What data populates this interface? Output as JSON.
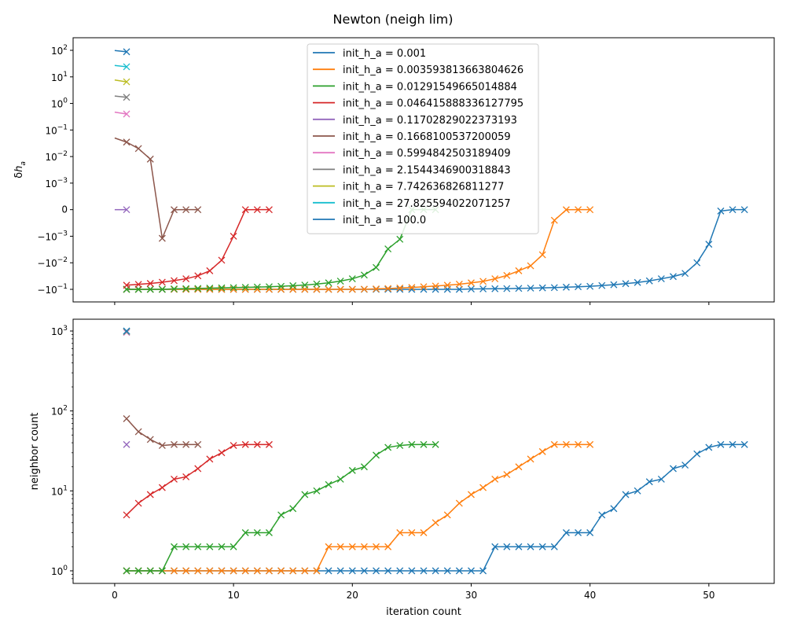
{
  "figure": {
    "title": "Newton (neigh lim)"
  },
  "colors": [
    "#1f77b4",
    "#ff7f0e",
    "#2ca02c",
    "#d62728",
    "#9467bd",
    "#8c564b",
    "#e377c2",
    "#7f7f7f",
    "#bcbd22",
    "#17becf",
    "#1f77b4"
  ],
  "chart_data": [
    {
      "type": "line",
      "panel": "top",
      "title": "Newton (neigh lim)",
      "xlabel": "",
      "ylabel": "δh_a",
      "yscale": "symlog",
      "xlim": [
        -3.5,
        55.5
      ],
      "ylim": [
        -0.2,
        200
      ],
      "grid": false,
      "legend_position": "top-center",
      "x_ticks": [
        0,
        10,
        20,
        30,
        40,
        50
      ],
      "x_tick_labels_visible": false,
      "y_ticks": [
        {
          "value": 100,
          "label": "10^2"
        },
        {
          "value": 10,
          "label": "10^1"
        },
        {
          "value": 1,
          "label": "10^0"
        },
        {
          "value": 0.1,
          "label": "10^-1"
        },
        {
          "value": 0.01,
          "label": "10^-2"
        },
        {
          "value": 0.001,
          "label": "10^-3"
        },
        {
          "value": 0,
          "label": "0"
        },
        {
          "value": -0.001,
          "label": "−10^-3"
        },
        {
          "value": -0.01,
          "label": "−10^-2"
        },
        {
          "value": -0.1,
          "label": "−10^-1"
        }
      ],
      "series": [
        {
          "name": "init_h_a = 0.001",
          "color": "#1f77b4",
          "x": [
            1,
            2,
            3,
            4,
            5,
            6,
            7,
            8,
            9,
            10,
            11,
            12,
            13,
            14,
            15,
            16,
            17,
            18,
            19,
            20,
            21,
            22,
            23,
            24,
            25,
            26,
            27,
            28,
            29,
            30,
            31,
            32,
            33,
            34,
            35,
            36,
            37,
            38,
            39,
            40,
            41,
            42,
            43,
            44,
            45,
            46,
            47,
            48,
            49,
            50,
            51,
            52,
            53
          ],
          "y": [
            -0.1,
            -0.1,
            -0.1,
            -0.1,
            -0.1,
            -0.1,
            -0.1,
            -0.1,
            -0.1,
            -0.1,
            -0.1,
            -0.1,
            -0.1,
            -0.1,
            -0.1,
            -0.1,
            -0.1,
            -0.1,
            -0.1,
            -0.1,
            -0.1,
            -0.1,
            -0.1,
            -0.1,
            -0.1,
            -0.1,
            -0.1,
            -0.1,
            -0.1,
            -0.097,
            -0.096,
            -0.095,
            -0.094,
            -0.092,
            -0.09,
            -0.088,
            -0.086,
            -0.083,
            -0.08,
            -0.077,
            -0.072,
            -0.067,
            -0.061,
            -0.055,
            -0.048,
            -0.04,
            -0.033,
            -0.025,
            -0.01,
            -0.002,
            -5e-05,
            0,
            0
          ]
        },
        {
          "name": "init_h_a = 0.003593813663804626",
          "color": "#ff7f0e",
          "x": [
            1,
            2,
            3,
            4,
            5,
            6,
            7,
            8,
            9,
            10,
            11,
            12,
            13,
            14,
            15,
            16,
            17,
            18,
            19,
            20,
            21,
            22,
            23,
            24,
            25,
            26,
            27,
            28,
            29,
            30,
            31,
            32,
            33,
            34,
            35,
            36,
            37,
            38,
            39,
            40
          ],
          "y": [
            -0.1,
            -0.1,
            -0.1,
            -0.1,
            -0.1,
            -0.1,
            -0.1,
            -0.1,
            -0.1,
            -0.1,
            -0.1,
            -0.1,
            -0.1,
            -0.1,
            -0.1,
            -0.1,
            -0.1,
            -0.1,
            -0.1,
            -0.1,
            -0.099,
            -0.096,
            -0.093,
            -0.089,
            -0.085,
            -0.08,
            -0.075,
            -0.07,
            -0.064,
            -0.057,
            -0.05,
            -0.04,
            -0.03,
            -0.02,
            -0.013,
            -0.005,
            -0.0004,
            -3e-06,
            0,
            0
          ]
        },
        {
          "name": "init_h_a = 0.01291549665014884",
          "color": "#2ca02c",
          "x": [
            1,
            2,
            3,
            4,
            5,
            6,
            7,
            8,
            9,
            10,
            11,
            12,
            13,
            14,
            15,
            16,
            17,
            18,
            19,
            20,
            21,
            22,
            23,
            24,
            25,
            26,
            27
          ],
          "y": [
            -0.1,
            -0.1,
            -0.1,
            -0.1,
            -0.096,
            -0.094,
            -0.092,
            -0.09,
            -0.088,
            -0.086,
            -0.084,
            -0.082,
            -0.08,
            -0.077,
            -0.073,
            -0.069,
            -0.063,
            -0.057,
            -0.049,
            -0.04,
            -0.029,
            -0.015,
            -0.003,
            -0.0013,
            0,
            0,
            0
          ]
        },
        {
          "name": "init_h_a = 0.046415888336127795",
          "color": "#d62728",
          "x": [
            1,
            2,
            3,
            4,
            5,
            6,
            7,
            8,
            9,
            10,
            11,
            12,
            13
          ],
          "y": [
            -0.07,
            -0.065,
            -0.06,
            -0.054,
            -0.047,
            -0.04,
            -0.031,
            -0.02,
            -0.008,
            -0.001,
            -1e-06,
            0,
            0
          ]
        },
        {
          "name": "init_h_a = 0.11702829022373193",
          "color": "#9467bd",
          "x": [
            0,
            1
          ],
          "y": [
            0,
            0
          ]
        },
        {
          "name": "init_h_a = 0.1668100537200059",
          "color": "#8c564b",
          "x": [
            0,
            1,
            2,
            3,
            4,
            5,
            6,
            7
          ],
          "y": [
            0.05,
            0.035,
            0.02,
            0.008,
            -0.0012,
            -3e-06,
            0,
            0
          ]
        },
        {
          "name": "init_h_a = 0.5994842503189409",
          "color": "#e377c2",
          "x": [
            0,
            1
          ],
          "y": [
            0.47,
            0.4
          ]
        },
        {
          "name": "init_h_a = 2.1544346900318843",
          "color": "#7f7f7f",
          "x": [
            0,
            1
          ],
          "y": [
            1.9,
            1.7
          ]
        },
        {
          "name": "init_h_a = 7.742636826811277",
          "color": "#bcbd22",
          "x": [
            0,
            1
          ],
          "y": [
            7.6,
            6.5
          ]
        },
        {
          "name": "init_h_a = 27.825594022071257",
          "color": "#17becf",
          "x": [
            0,
            1
          ],
          "y": [
            27,
            24
          ]
        },
        {
          "name": "init_h_a = 100.0",
          "color": "#1f77b4",
          "x": [
            0,
            1
          ],
          "y": [
            98,
            88
          ]
        }
      ]
    },
    {
      "type": "line",
      "panel": "bottom",
      "xlabel": "iteration count",
      "ylabel": "neighbor count",
      "yscale": "log",
      "xlim": [
        -3.5,
        55.5
      ],
      "ylim": [
        0.7,
        1300
      ],
      "grid": false,
      "x_ticks": [
        0,
        10,
        20,
        30,
        40,
        50
      ],
      "y_ticks": [
        {
          "value": 1,
          "label": "10^0"
        },
        {
          "value": 10,
          "label": "10^1"
        },
        {
          "value": 100,
          "label": "10^2"
        },
        {
          "value": 1000,
          "label": "10^3"
        }
      ],
      "series": [
        {
          "name": "init_h_a = 0.001",
          "color": "#1f77b4",
          "x": [
            1,
            2,
            3,
            4,
            5,
            6,
            7,
            8,
            9,
            10,
            11,
            12,
            13,
            14,
            15,
            16,
            17,
            18,
            19,
            20,
            21,
            22,
            23,
            24,
            25,
            26,
            27,
            28,
            29,
            30,
            31,
            32,
            33,
            34,
            35,
            36,
            37,
            38,
            39,
            40,
            41,
            42,
            43,
            44,
            45,
            46,
            47,
            48,
            49,
            50,
            51,
            52,
            53
          ],
          "y": [
            1,
            1,
            1,
            1,
            1,
            1,
            1,
            1,
            1,
            1,
            1,
            1,
            1,
            1,
            1,
            1,
            1,
            1,
            1,
            1,
            1,
            1,
            1,
            1,
            1,
            1,
            1,
            1,
            1,
            1,
            1,
            2,
            2,
            2,
            2,
            2,
            2,
            3,
            3,
            3,
            5,
            6,
            9,
            10,
            13,
            14,
            19,
            21,
            29,
            35,
            38,
            38,
            38
          ]
        },
        {
          "name": "init_h_a = 0.003593813663804626",
          "color": "#ff7f0e",
          "x": [
            1,
            2,
            3,
            4,
            5,
            6,
            7,
            8,
            9,
            10,
            11,
            12,
            13,
            14,
            15,
            16,
            17,
            18,
            19,
            20,
            21,
            22,
            23,
            24,
            25,
            26,
            27,
            28,
            29,
            30,
            31,
            32,
            33,
            34,
            35,
            36,
            37,
            38,
            39,
            40
          ],
          "y": [
            1,
            1,
            1,
            1,
            1,
            1,
            1,
            1,
            1,
            1,
            1,
            1,
            1,
            1,
            1,
            1,
            1,
            2,
            2,
            2,
            2,
            2,
            2,
            3,
            3,
            3,
            4,
            5,
            7,
            9,
            11,
            14,
            16,
            20,
            25,
            31,
            38,
            38,
            38,
            38
          ]
        },
        {
          "name": "init_h_a = 0.01291549665014884",
          "color": "#2ca02c",
          "x": [
            1,
            2,
            3,
            4,
            5,
            6,
            7,
            8,
            9,
            10,
            11,
            12,
            13,
            14,
            15,
            16,
            17,
            18,
            19,
            20,
            21,
            22,
            23,
            24,
            25,
            26,
            27
          ],
          "y": [
            1,
            1,
            1,
            1,
            2,
            2,
            2,
            2,
            2,
            2,
            3,
            3,
            3,
            5,
            6,
            9,
            10,
            12,
            14,
            18,
            20,
            28,
            35,
            37,
            38,
            38,
            38
          ]
        },
        {
          "name": "init_h_a = 0.046415888336127795",
          "color": "#d62728",
          "x": [
            1,
            2,
            3,
            4,
            5,
            6,
            7,
            8,
            9,
            10,
            11,
            12,
            13
          ],
          "y": [
            5,
            7,
            9,
            11,
            14,
            15,
            19,
            25,
            30,
            37,
            38,
            38,
            38
          ]
        },
        {
          "name": "init_h_a = 0.11702829022373193",
          "color": "#9467bd",
          "x": [
            1
          ],
          "y": [
            38
          ]
        },
        {
          "name": "init_h_a = 0.1668100537200059",
          "color": "#8c564b",
          "x": [
            1,
            2,
            3,
            4,
            5,
            6,
            7
          ],
          "y": [
            80,
            55,
            44,
            37,
            38,
            38,
            38
          ]
        },
        {
          "name": "init_h_a = 0.5994842503189409",
          "color": "#e377c2",
          "x": [
            1
          ],
          "y": [
            960
          ]
        },
        {
          "name": "init_h_a = 2.1544346900318843",
          "color": "#7f7f7f",
          "x": [
            1
          ],
          "y": [
            980
          ]
        },
        {
          "name": "init_h_a = 7.742636826811277",
          "color": "#bcbd22",
          "x": [
            1
          ],
          "y": [
            990
          ]
        },
        {
          "name": "init_h_a = 27.825594022071257",
          "color": "#17becf",
          "x": [
            1
          ],
          "y": [
            995
          ]
        },
        {
          "name": "init_h_a = 100.0",
          "color": "#1f77b4",
          "x": [
            1
          ],
          "y": [
            1000
          ]
        }
      ]
    }
  ]
}
